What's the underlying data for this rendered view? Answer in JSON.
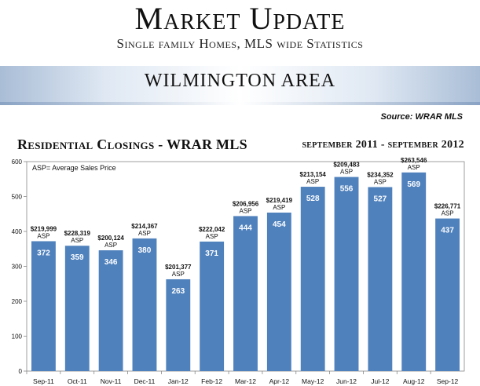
{
  "header": {
    "title": "Market Update",
    "subtitle": "Single family Homes, MLS wide Statistics",
    "area": "WILMINGTON AREA",
    "source": "Source: WRAR MLS"
  },
  "colors": {
    "bar": "#4f81bd",
    "bar_text": "#ffffff",
    "banner": "#a9bdd6"
  },
  "chart_data": {
    "type": "bar",
    "title": "Residential Closings - WRAR MLS",
    "subtitle": "september 2011 - september 2012",
    "annotation": "ASP= Average Sales Price",
    "categories": [
      "Sep-11",
      "Oct-11",
      "Nov-11",
      "Dec-11",
      "Jan-12",
      "Feb-12",
      "Mar-12",
      "Apr-12",
      "May-12",
      "Jun-12",
      "Jul-12",
      "Aug-12",
      "Sep-12"
    ],
    "values": [
      372,
      359,
      346,
      380,
      263,
      371,
      444,
      454,
      528,
      556,
      527,
      569,
      437
    ],
    "asp": [
      "$219,999",
      "$228,319",
      "$200,124",
      "$214,367",
      "$201,377",
      "$222,042",
      "$206,956",
      "$219,419",
      "$213,154",
      "$209,483",
      "$234,352",
      "$263,546",
      "$226,771"
    ],
    "asp_label": "ASP",
    "ylim": [
      0,
      600
    ],
    "yticks": [
      0,
      100,
      200,
      300,
      400,
      500,
      600
    ],
    "grid": false,
    "xlabel": "",
    "ylabel": ""
  }
}
